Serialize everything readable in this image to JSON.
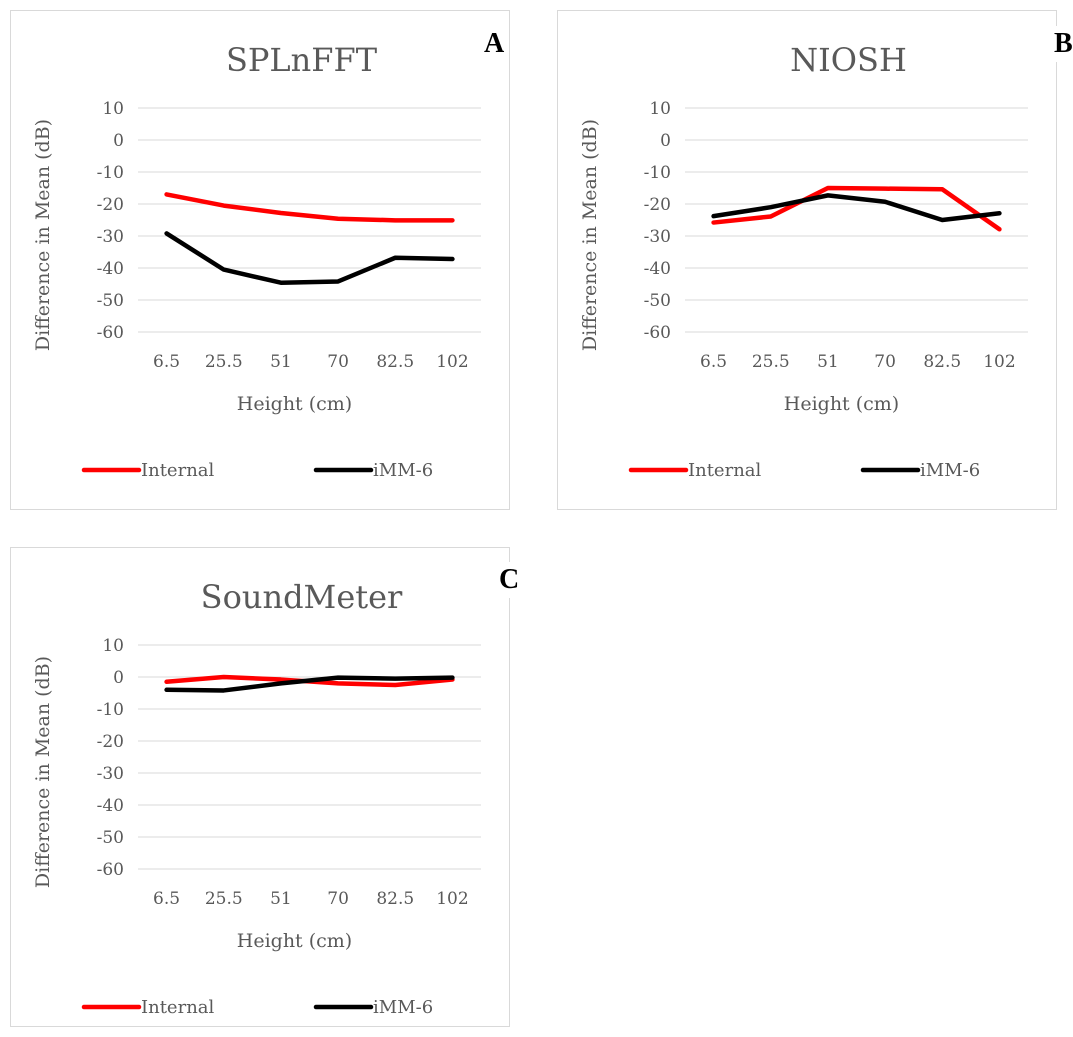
{
  "chart_data": [
    {
      "type": "line",
      "panel_label": "A",
      "title": "SPLnFFT",
      "xlabel": "Height (cm)",
      "ylabel": "Difference in Mean (dB)",
      "categories": [
        "6.5",
        "25.5",
        "51",
        "70",
        "82.5",
        "102"
      ],
      "ylim": [
        -60,
        10
      ],
      "yticks": [
        10,
        0,
        -10,
        -20,
        -30,
        -40,
        -50,
        -60
      ],
      "grid": true,
      "legend_position": "bottom",
      "series": [
        {
          "name": "Internal",
          "color": "#ff0000",
          "values": [
            -17,
            -20.5,
            -22.8,
            -24.6,
            -25.1,
            -25.1
          ]
        },
        {
          "name": "iMM-6",
          "color": "#000000",
          "values": [
            -29.2,
            -40.5,
            -44.6,
            -44.2,
            -36.8,
            -37.2
          ]
        }
      ]
    },
    {
      "type": "line",
      "panel_label": "B",
      "title": "NIOSH",
      "xlabel": "Height (cm)",
      "ylabel": "Difference in Mean (dB)",
      "categories": [
        "6.5",
        "25.5",
        "51",
        "70",
        "82.5",
        "102"
      ],
      "ylim": [
        -60,
        10
      ],
      "yticks": [
        10,
        0,
        -10,
        -20,
        -30,
        -40,
        -50,
        -60
      ],
      "grid": true,
      "legend_position": "bottom",
      "series": [
        {
          "name": "Internal",
          "color": "#ff0000",
          "values": [
            -25.8,
            -23.9,
            -15,
            -15.2,
            -15.4,
            -27.9
          ]
        },
        {
          "name": "iMM-6",
          "color": "#000000",
          "values": [
            -23.8,
            -21,
            -17.3,
            -19.3,
            -25,
            -22.9
          ]
        }
      ]
    },
    {
      "type": "line",
      "panel_label": "C",
      "title": "SoundMeter",
      "xlabel": "Height (cm)",
      "ylabel": "Difference in Mean (dB)",
      "categories": [
        "6.5",
        "25.5",
        "51",
        "70",
        "82.5",
        "102"
      ],
      "ylim": [
        -60,
        10
      ],
      "yticks": [
        10,
        0,
        -10,
        -20,
        -30,
        -40,
        -50,
        -60
      ],
      "grid": true,
      "legend_position": "bottom",
      "series": [
        {
          "name": "Internal",
          "color": "#ff0000",
          "values": [
            -1.5,
            0,
            -0.8,
            -2,
            -2.5,
            -0.8
          ]
        },
        {
          "name": "iMM-6",
          "color": "#000000",
          "values": [
            -4,
            -4.2,
            -2,
            -0.2,
            -0.5,
            -0.2
          ]
        }
      ]
    }
  ]
}
